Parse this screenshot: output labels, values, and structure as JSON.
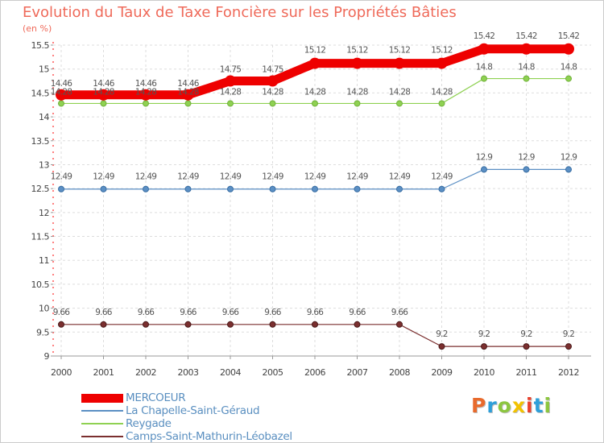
{
  "chart_data": {
    "type": "line",
    "title": "Evolution du Taux de Taxe Foncière sur les Propriétés Bâties",
    "ylabel": "(en %)",
    "xlabel": "",
    "ylim": [
      9,
      15.5
    ],
    "grid": true,
    "x": [
      "2000",
      "2001",
      "2002",
      "2003",
      "2004",
      "2005",
      "2006",
      "2007",
      "2008",
      "2009",
      "2010",
      "2011",
      "2012"
    ],
    "yticks": [
      "9",
      "9.5",
      "10",
      "10.5",
      "11",
      "11.5",
      "12",
      "12.5",
      "13",
      "13.5",
      "14",
      "14.5",
      "15",
      "15.5"
    ],
    "series": [
      {
        "name": "MERCOEUR",
        "color": "#ee0000",
        "values": [
          14.46,
          14.46,
          14.46,
          14.46,
          14.75,
          14.75,
          15.12,
          15.12,
          15.12,
          15.12,
          15.42,
          15.42,
          15.42
        ],
        "labels": [
          "14.46",
          "14.46",
          "14.46",
          "14.46",
          "14.75",
          "14.75",
          "15.12",
          "15.12",
          "15.12",
          "15.12",
          "15.42",
          "15.42",
          "15.42"
        ]
      },
      {
        "name": "La Chapelle-Saint-Géraud",
        "color": "#5b8fc4",
        "values": [
          12.49,
          12.49,
          12.49,
          12.49,
          12.49,
          12.49,
          12.49,
          12.49,
          12.49,
          12.49,
          12.9,
          12.9,
          12.9
        ],
        "labels": [
          "12.49",
          "12.49",
          "12.49",
          "12.49",
          "12.49",
          "12.49",
          "12.49",
          "12.49",
          "12.49",
          "12.49",
          "12.9",
          "12.9",
          "12.9"
        ]
      },
      {
        "name": "Reygade",
        "color": "#8fd152",
        "values": [
          14.28,
          14.28,
          14.28,
          14.28,
          14.28,
          14.28,
          14.28,
          14.28,
          14.28,
          14.28,
          14.8,
          14.8,
          14.8
        ],
        "labels": [
          "14.28",
          "14.28",
          "14.28",
          "14.28",
          "14.28",
          "14.28",
          "14.28",
          "14.28",
          "14.28",
          "14.28",
          "14.8",
          "14.8",
          "14.8"
        ]
      },
      {
        "name": "Camps-Saint-Mathurin-Léobazel",
        "color": "#7b2f2f",
        "values": [
          9.66,
          9.66,
          9.66,
          9.66,
          9.66,
          9.66,
          9.66,
          9.66,
          9.66,
          9.2,
          9.2,
          9.2,
          9.2
        ],
        "labels": [
          "9.66",
          "9.66",
          "9.66",
          "9.66",
          "9.66",
          "9.66",
          "9.66",
          "9.66",
          "9.66",
          "9.2",
          "9.2",
          "9.2",
          "9.2"
        ]
      }
    ]
  },
  "logo": {
    "letters": [
      "P",
      "r",
      "o",
      "x",
      "i",
      "t",
      "i"
    ],
    "colors": [
      "#e86a2c",
      "#2e9fd9",
      "#8cc63f",
      "#f2c200",
      "#e8402c",
      "#2e9fd9",
      "#8cc63f"
    ]
  }
}
